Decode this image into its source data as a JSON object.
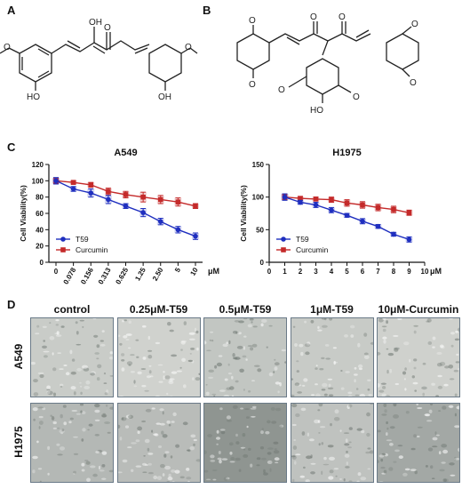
{
  "panels": {
    "a": "A",
    "b": "B",
    "c": "C",
    "d": "D"
  },
  "structure_a": {
    "atoms": {
      "oh_top": "OH",
      "o_keto": "O",
      "o_left": "O",
      "oh_left": "HO",
      "o_right": "O",
      "oh_right": "OH"
    }
  },
  "structure_b": {
    "atoms": {
      "o1": "O",
      "o2": "O",
      "o3": "O",
      "o4": "O",
      "o5": "O",
      "o6": "O",
      "o7": "O",
      "o8": "O",
      "o9": "O",
      "ho": "HO"
    }
  },
  "chart_data": [
    {
      "type": "line",
      "title": "A549",
      "xlabel": "",
      "unit_label": "μM",
      "ylabel": "Cell Viability(%)",
      "categories": [
        "0",
        "0.078",
        "0.156",
        "0.313",
        "0.625",
        "1.25",
        "2.50",
        "5",
        "10"
      ],
      "ylim": [
        0,
        120
      ],
      "yticks": [
        "0",
        "20",
        "40",
        "60",
        "80",
        "100",
        "120"
      ],
      "series": [
        {
          "name": "T59",
          "color": "#1f2fbf",
          "values": [
            100,
            90,
            85,
            77,
            69,
            61,
            50,
            40,
            32
          ],
          "errors": [
            4,
            3,
            5,
            5,
            3,
            5,
            4,
            4,
            4
          ]
        },
        {
          "name": "Curcumin",
          "color": "#c42a2a",
          "values": [
            100,
            98,
            95,
            87,
            83,
            80,
            77,
            74,
            69
          ],
          "errors": [
            3,
            2,
            3,
            4,
            4,
            6,
            5,
            5,
            3
          ]
        }
      ],
      "legend": "bottom-left",
      "grid": false
    },
    {
      "type": "line",
      "title": "H1975",
      "xlabel": "",
      "unit_label": "μM",
      "ylabel": "Cell Viability(%)",
      "x": [
        1,
        2,
        3,
        4,
        5,
        6,
        7,
        8,
        9
      ],
      "xticks": [
        "0",
        "1",
        "2",
        "3",
        "4",
        "5",
        "6",
        "7",
        "8",
        "9",
        "10"
      ],
      "xlim": [
        0,
        10
      ],
      "ylim": [
        0,
        150
      ],
      "yticks": [
        "0",
        "50",
        "100",
        "150"
      ],
      "series": [
        {
          "name": "T59",
          "color": "#1f2fbf",
          "values": [
            100,
            92,
            88,
            80,
            72,
            63,
            55,
            43,
            35
          ],
          "errors": [
            5,
            3,
            4,
            4,
            3,
            4,
            3,
            3,
            4
          ]
        },
        {
          "name": "Curcumin",
          "color": "#c42a2a",
          "values": [
            100,
            98,
            97,
            96,
            91,
            88,
            84,
            81,
            76
          ],
          "errors": [
            4,
            3,
            3,
            4,
            5,
            5,
            5,
            5,
            4
          ]
        }
      ],
      "legend": "bottom-left",
      "grid": false
    }
  ],
  "micrographs": {
    "columns": [
      "control",
      "0.25μM-T59",
      "0.5μM-T59",
      "1μM-T59",
      "10μM-Curcumin"
    ],
    "rows": [
      "A549",
      "H1975"
    ],
    "tones": [
      [
        "#c9ccc8",
        "#d0d2ce",
        "#c2c6c2",
        "#c8cbc7",
        "#cfd1cd"
      ],
      [
        "#b4b8b5",
        "#b9bcb9",
        "#8f9591",
        "#bfc2bf",
        "#a3a8a5"
      ]
    ]
  }
}
